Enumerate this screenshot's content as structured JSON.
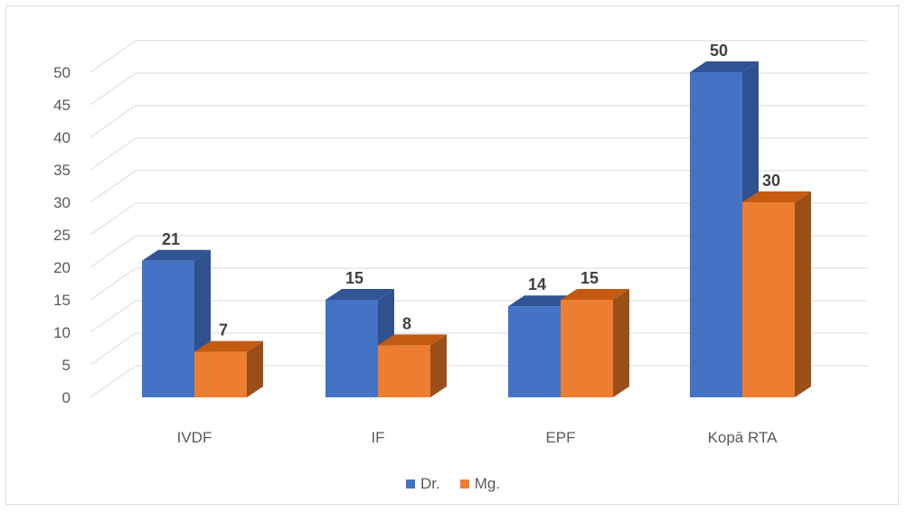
{
  "chart_data": {
    "type": "bar",
    "categories": [
      "IVDF",
      "IF",
      "EPF",
      "Kopā RTA"
    ],
    "series": [
      {
        "name": "Dr.",
        "values": [
          21,
          15,
          14,
          50
        ],
        "color": "#4472C4",
        "side_color": "#2F528F",
        "top_color": "#2F5597"
      },
      {
        "name": "Mg.",
        "values": [
          7,
          8,
          15,
          30
        ],
        "color": "#ED7D31",
        "side_color": "#9C4E18",
        "top_color": "#C55A11"
      }
    ],
    "ylim": [
      0,
      50
    ],
    "yticks": [
      0,
      5,
      10,
      15,
      20,
      25,
      30,
      35,
      40,
      45,
      50
    ],
    "grid": true,
    "legend_position": "bottom",
    "title": "",
    "xlabel": "",
    "ylabel": ""
  }
}
